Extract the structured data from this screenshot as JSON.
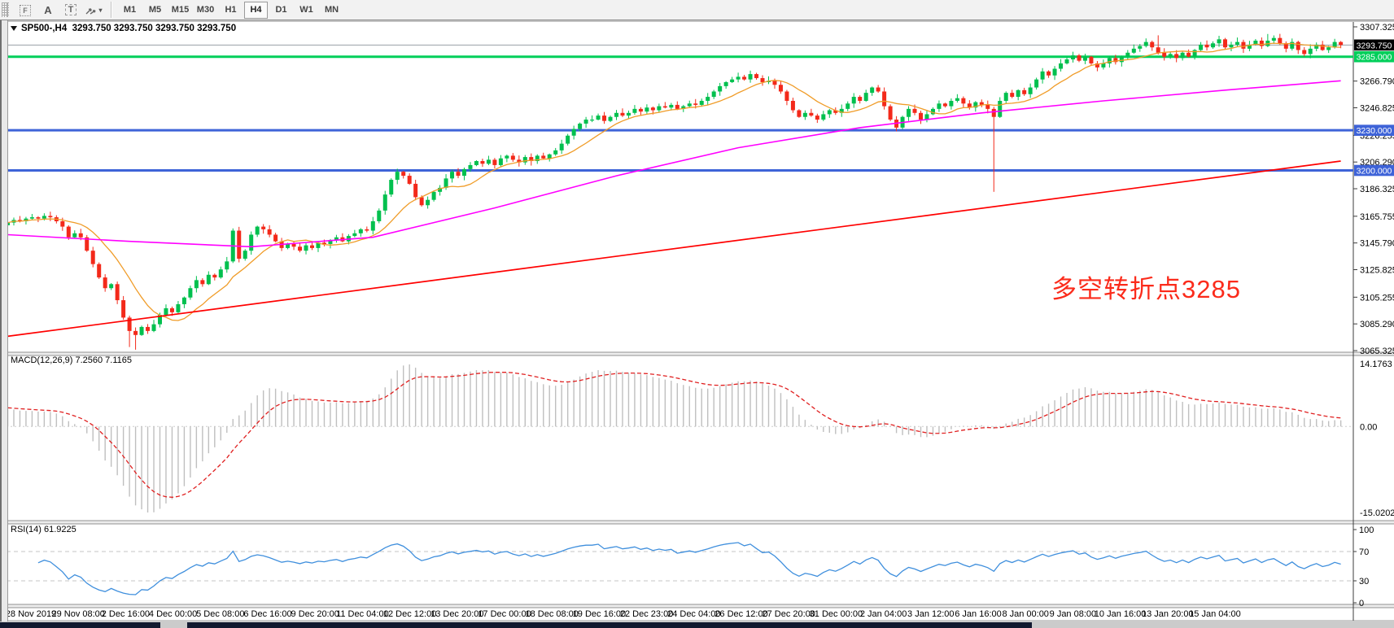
{
  "toolbar": {
    "tools": [
      {
        "name": "frame-tool",
        "label": "F"
      },
      {
        "name": "text-tool",
        "label": "A"
      },
      {
        "name": "text-label-tool",
        "label": "T"
      },
      {
        "name": "arrows-tool",
        "label": "",
        "dropdown": "▾"
      }
    ],
    "timeframes": [
      "M1",
      "M5",
      "M15",
      "M30",
      "H1",
      "H4",
      "D1",
      "W1",
      "MN"
    ],
    "active_timeframe": "H4"
  },
  "chart": {
    "title": "SP500-,H4  3293.750 3293.750 3293.750 3293.750",
    "symbol": "SP500-",
    "timeframe": "H4",
    "last_price": "3293.750",
    "annotation": {
      "text": "多空转折点3285",
      "color": "#fb2b1b"
    }
  },
  "price_axis": {
    "ticks": [
      "3307.325",
      "3266.790",
      "3246.825",
      "3226.255",
      "3206.290",
      "3186.325",
      "3165.755",
      "3145.790",
      "3125.825",
      "3105.255",
      "3085.290",
      "3065.325"
    ],
    "badges": [
      {
        "name": "current-price-badge",
        "label": "3293.750",
        "price": 3293.75,
        "bg": "#000000",
        "fg": "#ffffff"
      },
      {
        "name": "level-3285-badge",
        "label": "3285.000",
        "price": 3285.0,
        "bg": "#00cf5a",
        "fg": "#ffffff"
      },
      {
        "name": "level-3230-badge",
        "label": "3230.000",
        "price": 3230.0,
        "bg": "#3e63d8",
        "fg": "#ffffff"
      },
      {
        "name": "level-3200-badge",
        "label": "3200.000",
        "price": 3200.0,
        "bg": "#3e63d8",
        "fg": "#ffffff"
      }
    ]
  },
  "chart_data": {
    "type": "candlestick",
    "title": "SP500- H4 candlestick chart with MACD and RSI",
    "price_axis_range": [
      3065.325,
      3307.325
    ],
    "grid": false,
    "current_price": 3293.75,
    "horizontal_lines": [
      {
        "price": 3293.75,
        "color": "#9aa0a6",
        "width": 1,
        "role": "current-price-line"
      },
      {
        "price": 3285.0,
        "color": "#00cf5a",
        "width": 3,
        "role": "bull-bear-turning-point"
      },
      {
        "price": 3230.0,
        "color": "#3e63d8",
        "width": 3,
        "role": "support-resistance"
      },
      {
        "price": 3200.0,
        "color": "#3e63d8",
        "width": 3,
        "role": "support-resistance"
      }
    ],
    "candle_colors": {
      "up": "#00c04e",
      "down": "#f3291a"
    },
    "closes": [
      3161,
      3163,
      3162,
      3164,
      3165,
      3164,
      3166,
      3165,
      3162,
      3158,
      3150,
      3153,
      3150,
      3140,
      3130,
      3120,
      3112,
      3115,
      3103,
      3090,
      3080,
      3077,
      3083,
      3080,
      3085,
      3092,
      3097,
      3094,
      3100,
      3105,
      3112,
      3118,
      3115,
      3122,
      3120,
      3126,
      3132,
      3155,
      3134,
      3140,
      3152,
      3158,
      3156,
      3152,
      3147,
      3142,
      3145,
      3143,
      3140,
      3144,
      3142,
      3146,
      3145,
      3148,
      3150,
      3147,
      3151,
      3153,
      3156,
      3155,
      3162,
      3170,
      3182,
      3193,
      3199,
      3196,
      3190,
      3180,
      3174,
      3178,
      3184,
      3187,
      3194,
      3199,
      3196,
      3201,
      3204,
      3207,
      3205,
      3208,
      3204,
      3209,
      3211,
      3208,
      3206,
      3210,
      3207,
      3211,
      3209,
      3212,
      3215,
      3220,
      3226,
      3231,
      3235,
      3238,
      3238,
      3241,
      3237,
      3240,
      3243,
      3241,
      3243,
      3246,
      3244,
      3247,
      3245,
      3248,
      3247,
      3249,
      3246,
      3248,
      3250,
      3249,
      3252,
      3255,
      3259,
      3263,
      3266,
      3268,
      3270,
      3268,
      3272,
      3269,
      3266,
      3267,
      3264,
      3259,
      3252,
      3245,
      3240,
      3243,
      3241,
      3238,
      3242,
      3245,
      3243,
      3246,
      3250,
      3255,
      3252,
      3258,
      3262,
      3259,
      3248,
      3238,
      3232,
      3240,
      3246,
      3243,
      3238,
      3242,
      3246,
      3250,
      3248,
      3252,
      3254,
      3250,
      3247,
      3251,
      3249,
      3246,
      3240,
      3252,
      3258,
      3255,
      3260,
      3257,
      3262,
      3268,
      3274,
      3271,
      3276,
      3280,
      3283,
      3286,
      3282,
      3285,
      3280,
      3277,
      3280,
      3284,
      3281,
      3285,
      3288,
      3291,
      3293,
      3296,
      3292,
      3288,
      3285,
      3287,
      3284,
      3288,
      3285,
      3290,
      3294,
      3292,
      3295,
      3298,
      3292,
      3294,
      3296,
      3291,
      3294,
      3297,
      3293,
      3297,
      3299,
      3295,
      3291,
      3296,
      3290,
      3287,
      3291,
      3294,
      3290,
      3292,
      3296,
      3293.8
    ],
    "wick_overrides": {
      "20": {
        "low": 3068
      },
      "21": {
        "low": 3066
      },
      "162": {
        "low": 3184
      },
      "189": {
        "high": 3301
      },
      "207": {
        "high": 3302
      }
    },
    "moving_averages": [
      {
        "name": "fast-ma",
        "style": "sma",
        "period": 10,
        "color": "#f09c28",
        "width": 1.3
      },
      {
        "name": "medium-ma",
        "style": "anchors",
        "color": "#ff00ff",
        "width": 1.6,
        "anchors": [
          [
            0,
            3152
          ],
          [
            20,
            3147
          ],
          [
            40,
            3143
          ],
          [
            60,
            3150
          ],
          [
            80,
            3172
          ],
          [
            100,
            3196
          ],
          [
            120,
            3217
          ],
          [
            140,
            3232
          ],
          [
            160,
            3243
          ],
          [
            180,
            3252
          ],
          [
            200,
            3260
          ],
          [
            219,
            3267
          ]
        ]
      },
      {
        "name": "slow-ma",
        "style": "anchors",
        "color": "#ff0000",
        "width": 1.7,
        "anchors": [
          [
            0,
            3076
          ],
          [
            219,
            3207
          ]
        ]
      }
    ],
    "indicators": {
      "macd": {
        "label": "MACD(12,26,9)",
        "values": "7.2560 7.1165",
        "fast": 12,
        "slow": 26,
        "signal": 9,
        "axis_labels": [
          "14.1763",
          "0.00",
          "-15.0202"
        ],
        "histogram_color": "#bfbfbf",
        "signal_color": "#e02020"
      },
      "rsi": {
        "label": "RSI(14)",
        "value": "61.9225",
        "period": 14,
        "levels": [
          70,
          30
        ],
        "axis_labels": [
          "100",
          "70",
          "30",
          "0"
        ],
        "line_color": "#3f8fdd"
      }
    },
    "date_labels": [
      "28 Nov 2019",
      "29 Nov 08:00",
      "2 Dec 16:00",
      "4 Dec 00:00",
      "5 Dec 08:00",
      "6 Dec 16:00",
      "9 Dec 20:00",
      "11 Dec 04:00",
      "12 Dec 12:00",
      "13 Dec 20:00",
      "17 Dec 00:00",
      "18 Dec 08:00",
      "19 Dec 16:00",
      "22 Dec 23:00",
      "24 Dec 04:00",
      "26 Dec 12:00",
      "27 Dec 20:00",
      "31 Dec 00:00",
      "2 Jan 04:00",
      "3 Jan 12:00",
      "6 Jan 16:00",
      "8 Jan 00:00",
      "9 Jan 08:00",
      "10 Jan 16:00",
      "13 Jan 20:00",
      "15 Jan 04:00"
    ]
  }
}
